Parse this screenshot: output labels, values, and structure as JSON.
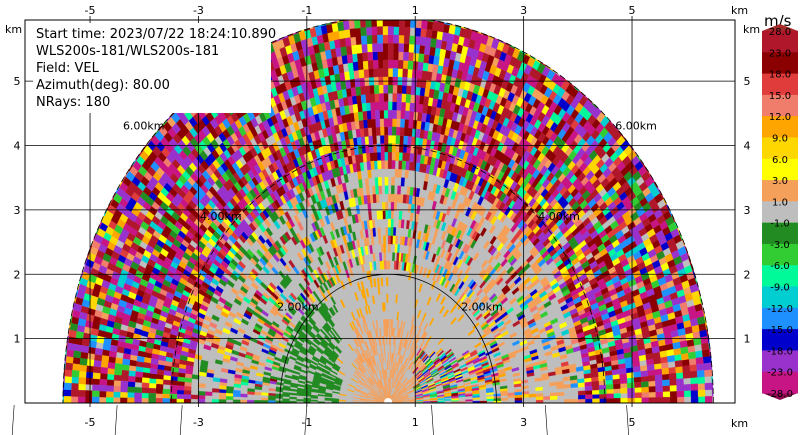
{
  "chart_data": {
    "type": "heatmap",
    "subtype": "ppi-radar",
    "field": "VEL",
    "info_lines": [
      "Start time: 2023/07/22 18:24:10.890",
      "WLS200s-181/WLS200s-181",
      "Field: VEL",
      "Azimuth(deg): 80.00",
      "NRays: 180"
    ],
    "x_axis": {
      "unit": "km",
      "range": [
        -6.2,
        6.9
      ],
      "ticks": [
        -5,
        -3,
        -1,
        1,
        3,
        5
      ],
      "tick_labels": [
        "-5",
        "-3",
        "-1",
        "1",
        "3",
        "5"
      ]
    },
    "y_axis": {
      "unit": "km",
      "range": [
        0,
        5.95
      ],
      "ticks": [
        1,
        2,
        3,
        4,
        5
      ],
      "tick_labels": [
        "1",
        "2",
        "3",
        "4",
        "5"
      ]
    },
    "range_rings": [
      {
        "range_km": 2,
        "label": "2.00km"
      },
      {
        "range_km": 4,
        "label": "4.00km"
      },
      {
        "range_km": 6,
        "label": "6.00km"
      }
    ],
    "max_range_km": 6.0,
    "radar_origin_km": [
      0.5,
      0
    ],
    "colorbar": {
      "title": "m/s",
      "tick_labels": [
        "28.0",
        "23.0",
        "18.0",
        "15.0",
        "12.0",
        "9.0",
        "6.0",
        "3.0",
        "1.0",
        "-1.0",
        "-3.0",
        "-6.0",
        "-9.0",
        "-12.0",
        "-15.0",
        "-18.0",
        "-23.0",
        "-28.0"
      ],
      "bands": [
        {
          "from": 23,
          "to": 28,
          "color": "#b0172a"
        },
        {
          "from": 18,
          "to": 23,
          "color": "#8b0000"
        },
        {
          "from": 15,
          "to": 18,
          "color": "#e03c3c"
        },
        {
          "from": 12,
          "to": 15,
          "color": "#f07c6c"
        },
        {
          "from": 9,
          "to": 12,
          "color": "#ffa500"
        },
        {
          "from": 6,
          "to": 9,
          "color": "#ffd700"
        },
        {
          "from": 3,
          "to": 6,
          "color": "#ffff00"
        },
        {
          "from": 1,
          "to": 3,
          "color": "#f5a05a"
        },
        {
          "from": -1,
          "to": 1,
          "color": "#bebebe"
        },
        {
          "from": -3,
          "to": -1,
          "color": "#228b22"
        },
        {
          "from": -6,
          "to": -3,
          "color": "#32cd32"
        },
        {
          "from": -9,
          "to": -6,
          "color": "#00fa9a"
        },
        {
          "from": -12,
          "to": -9,
          "color": "#00ced1"
        },
        {
          "from": -15,
          "to": -12,
          "color": "#1e90ff"
        },
        {
          "from": -18,
          "to": -15,
          "color": "#0000cd"
        },
        {
          "from": -23,
          "to": -18,
          "color": "#9932cc"
        },
        {
          "from": -28,
          "to": -23,
          "color": "#c71585"
        }
      ],
      "extend_max_color": "#a52a2a",
      "extend_min_color": "#8b0a50"
    },
    "grid": true
  }
}
